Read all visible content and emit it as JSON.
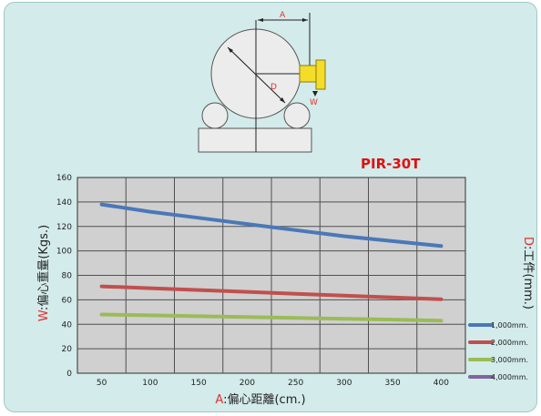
{
  "diagram": {
    "label_a": "A",
    "label_d": "D",
    "label_w": "W"
  },
  "model": "PIR-30T",
  "y_axis": {
    "prefix": "W",
    "text": ":偏心重量(Kgs.)"
  },
  "x_axis": {
    "prefix": "A",
    "text": ":偏心距離(cm.)"
  },
  "right_axis": {
    "prefix": "D",
    "text": ":工件(mm.)"
  },
  "colors": {
    "accent_red": "#e03030",
    "model_red": "#e01010",
    "plot_bg": "#d0d0d0",
    "grid": "#505050",
    "yellow": "#f4dd2a"
  },
  "chart_data": {
    "type": "line",
    "title": "PIR-30T",
    "xlabel": "A:偏心距離(cm.)",
    "ylabel": "W:偏心重量(Kgs.)",
    "xlim": [
      25,
      425
    ],
    "ylim": [
      0,
      160
    ],
    "x_ticks": [
      50,
      100,
      150,
      200,
      250,
      300,
      350,
      400
    ],
    "y_ticks": [
      0,
      20,
      40,
      60,
      80,
      100,
      120,
      140,
      160
    ],
    "legend_position": "right",
    "series": [
      {
        "name": "1,000mm.",
        "color": "#4a78b8",
        "x": [
          50,
          100,
          150,
          200,
          250,
          300,
          350,
          400
        ],
        "y": [
          138,
          132,
          127,
          122,
          117,
          112,
          108,
          104
        ]
      },
      {
        "name": "2,000mm.",
        "color": "#c0504d",
        "x": [
          50,
          100,
          150,
          200,
          250,
          300,
          350,
          400
        ],
        "y": [
          71,
          69.5,
          68,
          66.5,
          65,
          63.5,
          62,
          60.5
        ]
      },
      {
        "name": "3,000mm.",
        "color": "#9bbb59",
        "x": [
          50,
          100,
          150,
          200,
          250,
          300,
          350,
          400
        ],
        "y": [
          48,
          47.3,
          46.6,
          45.9,
          45.2,
          44.5,
          43.8,
          43
        ]
      },
      {
        "name": "4,000mm.",
        "color": "#8064a2",
        "x": [],
        "y": []
      }
    ]
  }
}
